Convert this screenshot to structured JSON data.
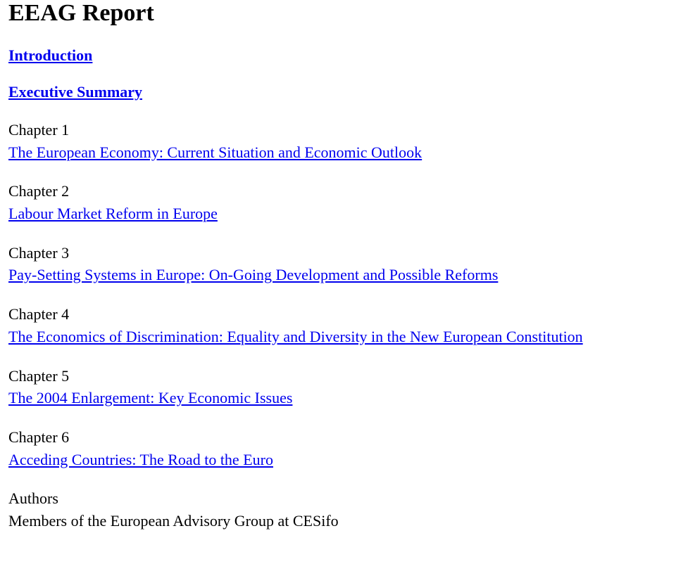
{
  "title": "EEAG Report",
  "linkHeadings": {
    "intro": "Introduction",
    "exec": "Executive Summary"
  },
  "chapters": {
    "c1": {
      "label": "Chapter 1",
      "title": "The European Economy: Current Situation and Economic Outlook"
    },
    "c2": {
      "label": "Chapter 2",
      "title": "Labour Market Reform in Europe"
    },
    "c3": {
      "label": "Chapter 3",
      "title": "Pay-Setting Systems in Europe: On-Going Development and Possible Reforms"
    },
    "c4": {
      "label": "Chapter 4",
      "title": "The Economics of Discrimination: Equality and Diversity in the New European Constitution"
    },
    "c5": {
      "label": "Chapter 5",
      "title": "The 2004 Enlargement: Key Economic Issues"
    },
    "c6": {
      "label": "Chapter 6",
      "title": "Acceding Countries: The Road to the Euro"
    }
  },
  "footer": {
    "authorsLabel": "Authors",
    "membersLine": "Members of the European Advisory Group at CESifo"
  }
}
